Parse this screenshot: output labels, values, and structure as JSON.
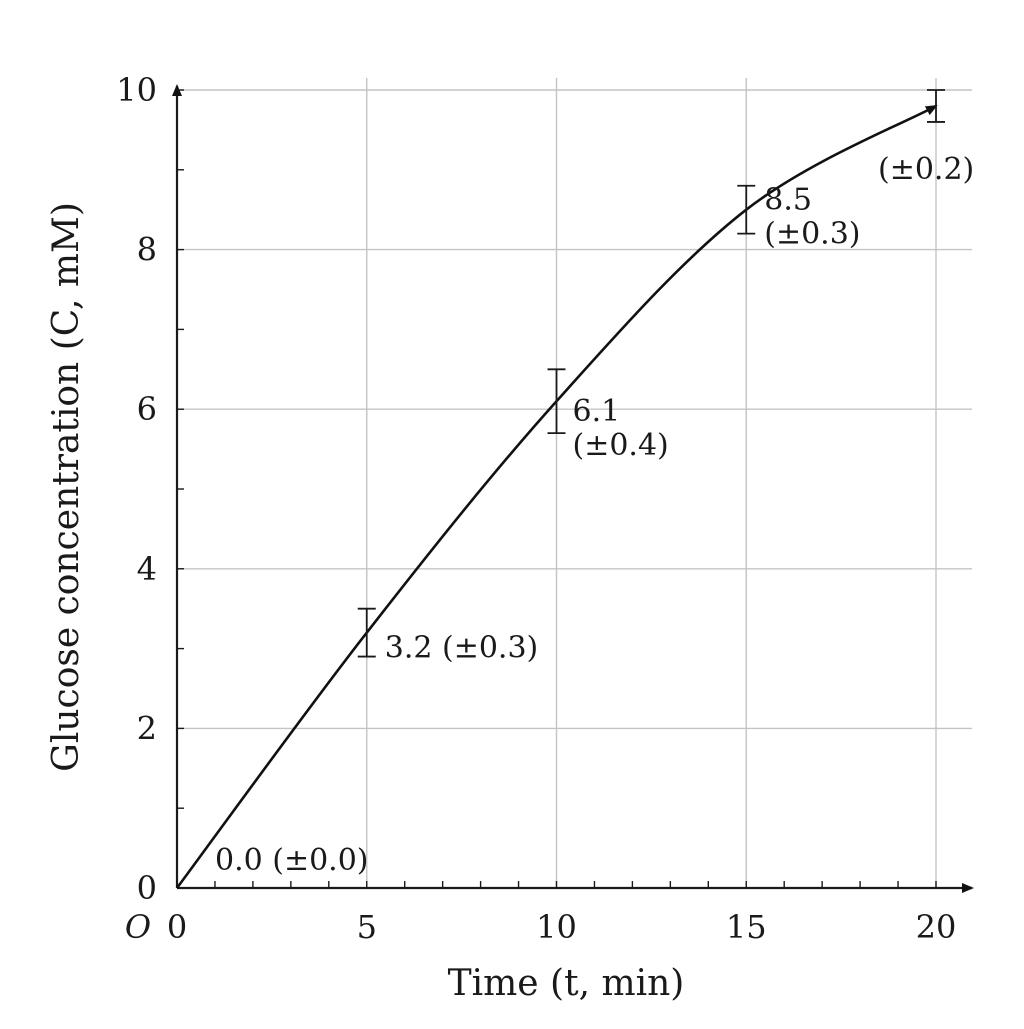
{
  "chart_data": {
    "type": "line",
    "title": "",
    "xlabel": "Time (t, min)",
    "ylabel": "Glucose concentration (C, mM)",
    "origin_label": "O",
    "xlim": [
      0,
      20
    ],
    "ylim": [
      0,
      10
    ],
    "x_ticks": [
      0,
      5,
      10,
      15,
      20
    ],
    "y_ticks": [
      0,
      2,
      4,
      6,
      8,
      10
    ],
    "grid": true,
    "series": [
      {
        "x": [
          0,
          5,
          10,
          15,
          20
        ],
        "y": [
          0.0,
          3.2,
          6.1,
          8.5,
          9.8
        ],
        "error": [
          0.0,
          0.3,
          0.4,
          0.3,
          0.2
        ],
        "labels": [
          "0.0 (±0.0)",
          "3.2 (±0.3)",
          "6.1\n(±0.4)",
          "8.5\n(±0.3)",
          "(±0.2)"
        ]
      }
    ]
  }
}
